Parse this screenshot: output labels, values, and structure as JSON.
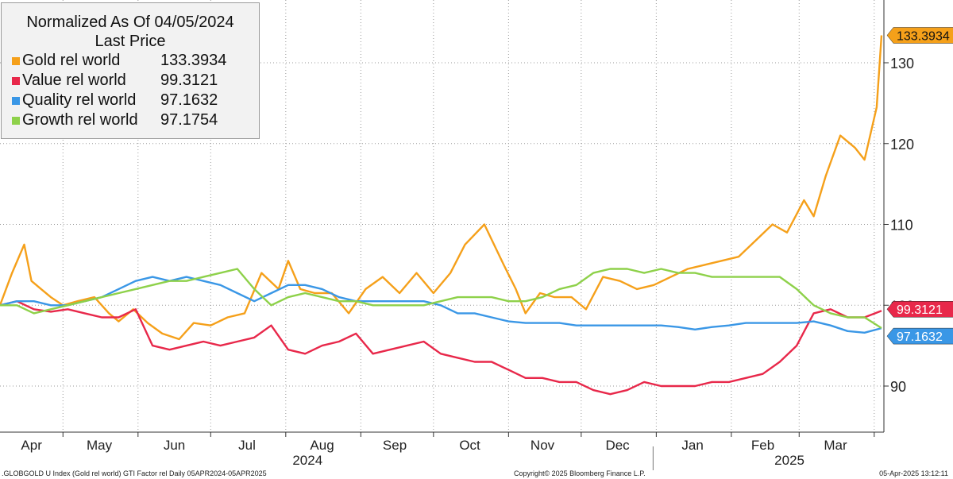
{
  "chart_data": {
    "type": "line",
    "title": "Normalized As Of 04/05/2024",
    "subtitle": "Last Price",
    "y_ticks": [
      90,
      100,
      110,
      120,
      130
    ],
    "ylim": [
      84.5,
      138.7
    ],
    "x_months": [
      {
        "label": "Apr",
        "year": ""
      },
      {
        "label": "May",
        "year": ""
      },
      {
        "label": "Jun",
        "year": ""
      },
      {
        "label": "Jul",
        "year": ""
      },
      {
        "label": "Aug",
        "year": "2024"
      },
      {
        "label": "Sep",
        "year": ""
      },
      {
        "label": "Oct",
        "year": ""
      },
      {
        "label": "Nov",
        "year": ""
      },
      {
        "label": "Dec",
        "year": ""
      },
      {
        "label": "Jan",
        "year": ""
      },
      {
        "label": "Feb",
        "year": "2025"
      },
      {
        "label": "Mar",
        "year": ""
      }
    ],
    "x_range": [
      "2024-04-05",
      "2025-04-05"
    ],
    "grid": true,
    "legend_position": "top-left",
    "series": [
      {
        "name": "Gold rel world",
        "last": "133.3934",
        "color": "#f5a01a",
        "x": [
          "2024-04-05",
          "2024-04-10",
          "2024-04-15",
          "2024-04-18",
          "2024-04-22",
          "2024-04-26",
          "2024-05-01",
          "2024-05-07",
          "2024-05-14",
          "2024-05-20",
          "2024-05-24",
          "2024-05-30",
          "2024-06-05",
          "2024-06-11",
          "2024-06-18",
          "2024-06-24",
          "2024-07-01",
          "2024-07-08",
          "2024-07-15",
          "2024-07-22",
          "2024-07-29",
          "2024-08-02",
          "2024-08-07",
          "2024-08-13",
          "2024-08-20",
          "2024-08-27",
          "2024-09-03",
          "2024-09-10",
          "2024-09-17",
          "2024-09-24",
          "2024-10-01",
          "2024-10-08",
          "2024-10-14",
          "2024-10-22",
          "2024-10-30",
          "2024-11-04",
          "2024-11-08",
          "2024-11-14",
          "2024-11-20",
          "2024-11-27",
          "2024-12-03",
          "2024-12-10",
          "2024-12-17",
          "2024-12-24",
          "2024-12-31",
          "2025-01-07",
          "2025-01-14",
          "2025-01-21",
          "2025-01-28",
          "2025-02-04",
          "2025-02-11",
          "2025-02-18",
          "2025-02-24",
          "2025-03-03",
          "2025-03-07",
          "2025-03-12",
          "2025-03-18",
          "2025-03-24",
          "2025-03-28",
          "2025-04-02",
          "2025-04-04"
        ],
        "y": [
          100,
          104,
          107.5,
          103,
          102,
          101,
          100,
          100.5,
          101,
          99,
          98,
          99.5,
          97.8,
          96.5,
          95.8,
          97.8,
          97.5,
          98.5,
          99,
          104,
          102,
          105.5,
          102,
          101.5,
          101.5,
          99,
          102,
          103.5,
          101.5,
          104,
          101.5,
          104,
          107.5,
          110,
          105,
          102,
          99,
          101.5,
          101,
          101,
          99.5,
          103.5,
          103,
          102,
          102.5,
          103.5,
          104.5,
          105,
          105.5,
          106,
          108,
          110,
          109,
          113,
          111,
          116,
          121,
          119.5,
          118,
          124.5,
          133.3934
        ]
      },
      {
        "name": "Value rel world",
        "last": "99.3121",
        "color": "#e8284a",
        "x": [
          "2024-04-05",
          "2024-04-12",
          "2024-04-19",
          "2024-04-26",
          "2024-05-03",
          "2024-05-10",
          "2024-05-17",
          "2024-05-24",
          "2024-05-31",
          "2024-06-07",
          "2024-06-14",
          "2024-06-21",
          "2024-06-28",
          "2024-07-05",
          "2024-07-12",
          "2024-07-19",
          "2024-07-26",
          "2024-08-02",
          "2024-08-09",
          "2024-08-16",
          "2024-08-23",
          "2024-08-30",
          "2024-09-06",
          "2024-09-13",
          "2024-09-20",
          "2024-09-27",
          "2024-10-04",
          "2024-10-11",
          "2024-10-18",
          "2024-10-25",
          "2024-11-01",
          "2024-11-08",
          "2024-11-15",
          "2024-11-22",
          "2024-11-29",
          "2024-12-06",
          "2024-12-13",
          "2024-12-20",
          "2024-12-27",
          "2025-01-03",
          "2025-01-10",
          "2025-01-17",
          "2025-01-24",
          "2025-01-31",
          "2025-02-07",
          "2025-02-14",
          "2025-02-21",
          "2025-02-28",
          "2025-03-07",
          "2025-03-14",
          "2025-03-21",
          "2025-03-28",
          "2025-04-04"
        ],
        "y": [
          100,
          100.5,
          99.5,
          99.2,
          99.5,
          99,
          98.5,
          98.5,
          99.5,
          95,
          94.5,
          95,
          95.5,
          95,
          95.5,
          96,
          97.5,
          94.5,
          94,
          95,
          95.5,
          96.5,
          94,
          94.5,
          95,
          95.5,
          94,
          93.5,
          93,
          93,
          92,
          91,
          91,
          90.5,
          90.5,
          89.5,
          89,
          89.5,
          90.5,
          90,
          90,
          90,
          90.5,
          90.5,
          91,
          91.5,
          93,
          95,
          99,
          99.5,
          98.5,
          98.5,
          99.3121
        ]
      },
      {
        "name": "Quality rel world",
        "last": "97.1632",
        "color": "#3a97e6",
        "x": [
          "2024-04-05",
          "2024-04-12",
          "2024-04-19",
          "2024-04-26",
          "2024-05-03",
          "2024-05-10",
          "2024-05-17",
          "2024-05-24",
          "2024-05-31",
          "2024-06-07",
          "2024-06-14",
          "2024-06-21",
          "2024-06-28",
          "2024-07-05",
          "2024-07-12",
          "2024-07-19",
          "2024-07-26",
          "2024-08-02",
          "2024-08-09",
          "2024-08-16",
          "2024-08-23",
          "2024-08-30",
          "2024-09-06",
          "2024-09-13",
          "2024-09-20",
          "2024-09-27",
          "2024-10-04",
          "2024-10-11",
          "2024-10-18",
          "2024-10-25",
          "2024-11-01",
          "2024-11-08",
          "2024-11-15",
          "2024-11-22",
          "2024-11-29",
          "2024-12-06",
          "2024-12-13",
          "2024-12-20",
          "2024-12-27",
          "2025-01-03",
          "2025-01-10",
          "2025-01-17",
          "2025-01-24",
          "2025-01-31",
          "2025-02-07",
          "2025-02-14",
          "2025-02-21",
          "2025-02-28",
          "2025-03-07",
          "2025-03-14",
          "2025-03-21",
          "2025-03-28",
          "2025-04-04"
        ],
        "y": [
          100,
          100.5,
          100.5,
          100,
          100,
          100.5,
          101,
          102,
          103,
          103.5,
          103,
          103.5,
          103,
          102.5,
          101.5,
          100.5,
          101.5,
          102.5,
          102.5,
          102,
          101,
          100.5,
          100.5,
          100.5,
          100.5,
          100.5,
          100,
          99,
          99,
          98.5,
          98,
          97.8,
          97.8,
          97.8,
          97.5,
          97.5,
          97.5,
          97.5,
          97.5,
          97.5,
          97.3,
          97,
          97.3,
          97.5,
          97.8,
          97.8,
          97.8,
          97.8,
          98,
          97.5,
          96.8,
          96.6,
          97.1632
        ]
      },
      {
        "name": "Growth rel world",
        "last": "97.1754",
        "color": "#8ed14a",
        "x": [
          "2024-04-05",
          "2024-04-12",
          "2024-04-19",
          "2024-04-26",
          "2024-05-03",
          "2024-05-10",
          "2024-05-17",
          "2024-05-24",
          "2024-05-31",
          "2024-06-07",
          "2024-06-14",
          "2024-06-21",
          "2024-06-28",
          "2024-07-05",
          "2024-07-12",
          "2024-07-19",
          "2024-07-26",
          "2024-08-02",
          "2024-08-09",
          "2024-08-16",
          "2024-08-23",
          "2024-08-30",
          "2024-09-06",
          "2024-09-13",
          "2024-09-20",
          "2024-09-27",
          "2024-10-04",
          "2024-10-11",
          "2024-10-18",
          "2024-10-25",
          "2024-11-01",
          "2024-11-08",
          "2024-11-15",
          "2024-11-22",
          "2024-11-29",
          "2024-12-06",
          "2024-12-13",
          "2024-12-20",
          "2024-12-27",
          "2025-01-03",
          "2025-01-10",
          "2025-01-17",
          "2025-01-24",
          "2025-01-31",
          "2025-02-07",
          "2025-02-14",
          "2025-02-21",
          "2025-02-28",
          "2025-03-07",
          "2025-03-14",
          "2025-03-21",
          "2025-03-28",
          "2025-04-04"
        ],
        "y": [
          100,
          100,
          99,
          99.5,
          100,
          100.5,
          101,
          101.5,
          102,
          102.5,
          103,
          103,
          103.5,
          104,
          104.5,
          102,
          100,
          101,
          101.5,
          101,
          100.5,
          100.5,
          100,
          100,
          100,
          100,
          100.5,
          101,
          101,
          101,
          100.5,
          100.5,
          101,
          102,
          102.5,
          104,
          104.5,
          104.5,
          104,
          104.5,
          104,
          104,
          103.5,
          103.5,
          103.5,
          103.5,
          103.5,
          102,
          100,
          99,
          98.5,
          98.5,
          97.1754
        ]
      }
    ]
  },
  "legend": {
    "title": "Normalized As Of 04/05/2024",
    "subtitle": "Last Price",
    "rows": [
      {
        "name": "Gold rel world",
        "value": "133.3934"
      },
      {
        "name": "Value rel world",
        "value": "99.3121"
      },
      {
        "name": "Quality rel world",
        "value": "97.1632"
      },
      {
        "name": "Growth rel world",
        "value": "97.1754"
      }
    ]
  },
  "footer": {
    "left": ".GLOBGOLD U Index (Gold rel world) GTI Factor rel  Daily 05APR2024-05APR2025",
    "middle": "Copyright© 2025 Bloomberg Finance L.P.",
    "right": "05-Apr-2025 13:12:11"
  }
}
